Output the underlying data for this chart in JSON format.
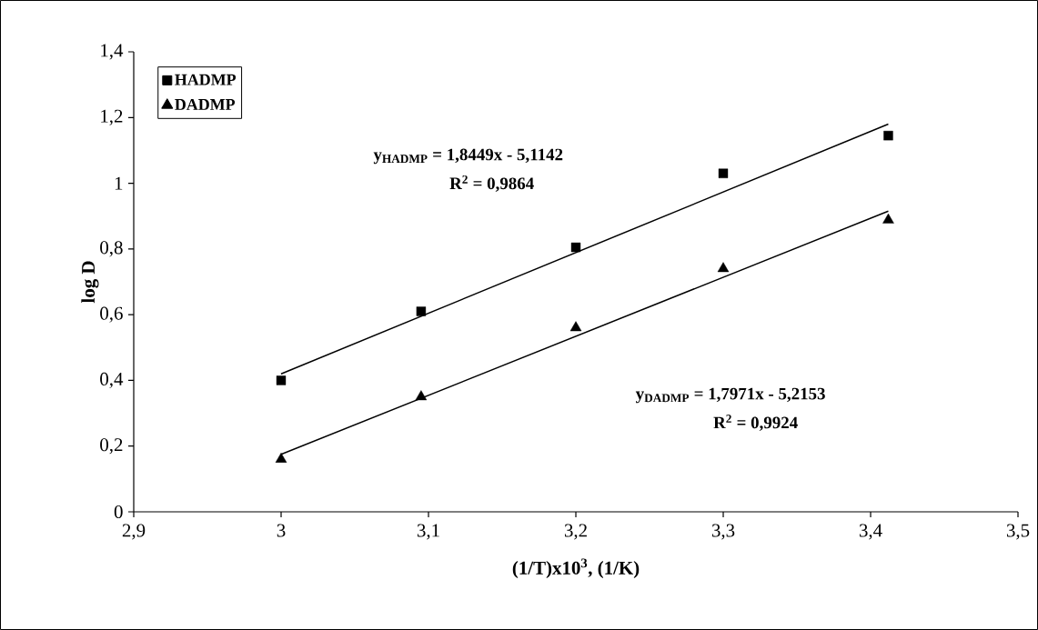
{
  "chart_data": {
    "type": "scatter",
    "xlabel": "(1/T)x10$^{3}$, (1/K)",
    "ylabel": "log D",
    "xlim": [
      2.9,
      3.5
    ],
    "ylim": [
      0,
      1.4
    ],
    "xticks": [
      {
        "value": 2.9,
        "label": "2,9"
      },
      3,
      {
        "value": 3.1,
        "label": "3,1"
      },
      {
        "value": 3.2,
        "label": "3,2"
      },
      {
        "value": 3.3,
        "label": "3,3"
      },
      {
        "value": 3.4,
        "label": "3,4"
      },
      {
        "value": 3.5,
        "label": "3,5"
      }
    ],
    "yticks": [
      0,
      {
        "value": 0.2,
        "label": "0,2"
      },
      {
        "value": 0.4,
        "label": "0,4"
      },
      {
        "value": 0.6,
        "label": "0,6"
      },
      {
        "value": 0.8,
        "label": "0,8"
      },
      1,
      {
        "value": 1.2,
        "label": "1,2"
      },
      {
        "value": 1.4,
        "label": "1,4"
      }
    ],
    "legend": "top left",
    "series": [
      {
        "name": "HADMP",
        "marker": "square",
        "color": "#000000",
        "x": [
          3.0,
          3.095,
          3.2,
          3.3,
          3.412
        ],
        "values": [
          0.4,
          0.61,
          0.805,
          1.03,
          1.145
        ]
      },
      {
        "name": "DADMP",
        "marker": "triangle",
        "color": "#000000",
        "x": [
          3.0,
          3.095,
          3.2,
          3.3,
          3.412
        ],
        "values": [
          0.16,
          0.35,
          0.56,
          0.74,
          0.888
        ]
      },
      {
        "type": "line",
        "color": "#000000",
        "x": [
          3.0,
          3.412
        ],
        "values": [
          0.42,
          1.18
        ]
      },
      {
        "type": "line",
        "color": "#000000",
        "x": [
          3.0,
          3.412
        ],
        "values": [
          0.175,
          0.915
        ]
      }
    ],
    "annotations": [
      "y$_{HADMP}$ = 1,8449x - 5,1142",
      "R$^{2}$ = 0,9864",
      "y$_{DADMP}$ = 1,7971x - 5,2153",
      "R$^{2}$ = 0,9924"
    ]
  }
}
